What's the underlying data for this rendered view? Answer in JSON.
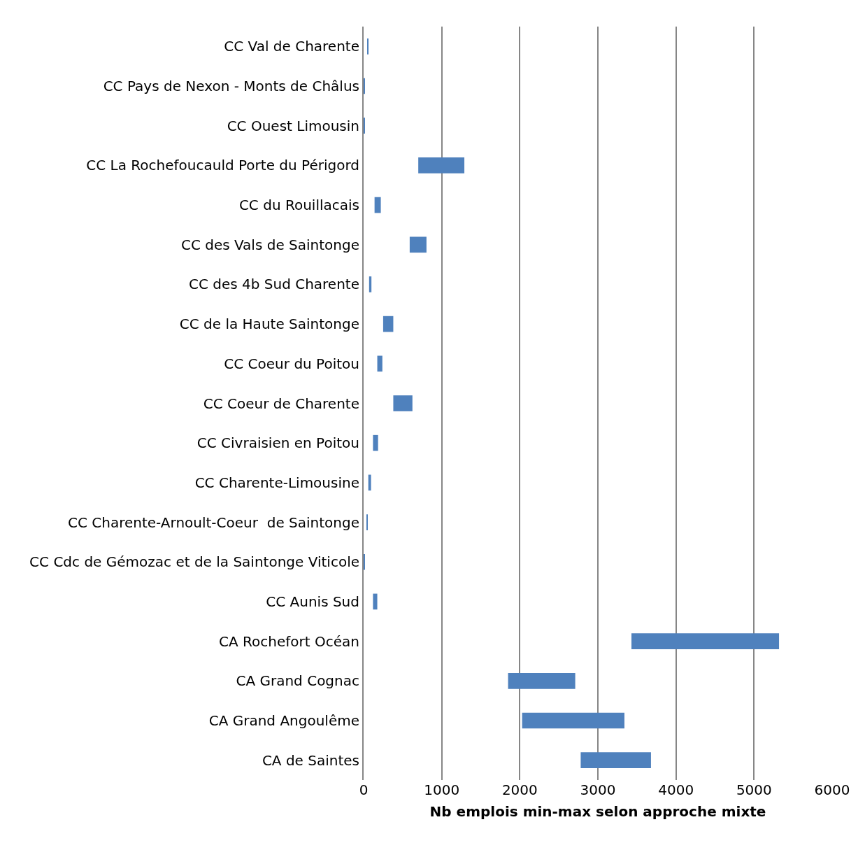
{
  "chart_data": {
    "type": "bar",
    "orientation": "horizontal",
    "xlabel": "Nb emplois min-max selon approche mixte",
    "categories": [
      "CC Val de Charente",
      "CC Pays de Nexon - Monts de Châlus",
      "CC Ouest Limousin",
      "CC La Rochefoucauld Porte du Périgord",
      "CC du Rouillacais",
      "CC des Vals de Saintonge",
      "CC des 4b Sud Charente",
      "CC de la Haute Saintonge",
      "CC Coeur du Poitou",
      "CC Coeur de Charente",
      "CC Civraisien en Poitou",
      "CC Charente-Limousine",
      "CC Charente-Arnoult-Coeur  de Saintonge",
      "CC Cdc de Gémozac et de la Saintonge Viticole",
      "CC Aunis Sud",
      "CA Rochefort Océan",
      "CA Grand Cognac",
      "CA Grand Angoulême",
      "CA de Saintes"
    ],
    "base": [
      45,
      3,
      3,
      700,
      140,
      590,
      70,
      250,
      175,
      380,
      120,
      60,
      40,
      3,
      120,
      3430,
      1850,
      2030,
      2780
    ],
    "values": [
      10,
      13,
      12,
      590,
      80,
      215,
      30,
      130,
      65,
      245,
      65,
      35,
      10,
      13,
      55,
      1890,
      860,
      1310,
      900
    ],
    "color": "#4f81bd",
    "xlim": [
      0,
      6000
    ],
    "xticks": [
      0,
      1000,
      2000,
      3000,
      4000,
      5000,
      6000
    ],
    "grid": "x"
  }
}
